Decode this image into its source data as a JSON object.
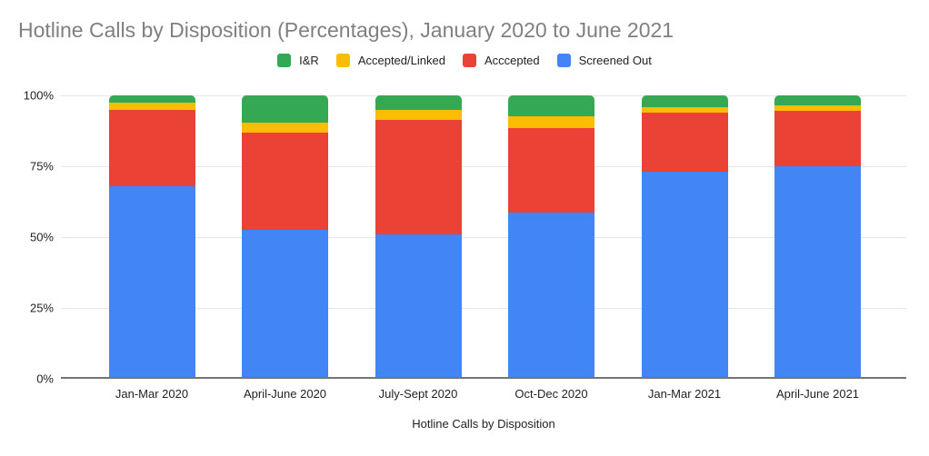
{
  "chart_data": {
    "type": "bar",
    "stacked": true,
    "unit": "percent",
    "title": "Hotline Calls by Disposition (Percentages), January 2020 to June 2021",
    "xlabel": "Hotline Calls by Disposition",
    "ylabel": "",
    "ylim": [
      0,
      100
    ],
    "y_ticks": [
      0,
      25,
      50,
      75,
      100
    ],
    "y_tick_suffix": "%",
    "grid": true,
    "legend_position": "top",
    "categories": [
      "Jan-Mar 2020",
      "April-June 2020",
      "July-Sept 2020",
      "Oct-Dec 2020",
      "Jan-Mar 2021",
      "April-June 2021"
    ],
    "series": [
      {
        "name": "Screened Out",
        "color": "#4285F4",
        "values": [
          68,
          52.5,
          51,
          58.5,
          73,
          75
        ]
      },
      {
        "name": "Acccepted",
        "color": "#EA4335",
        "values": [
          27,
          34.5,
          40.5,
          30,
          21,
          19.5
        ]
      },
      {
        "name": "Accepted/Linked",
        "color": "#FBBC04",
        "values": [
          2.5,
          3.5,
          3.5,
          4,
          2,
          2
        ]
      },
      {
        "name": "I&R",
        "color": "#34A853",
        "values": [
          2.5,
          9.5,
          5,
          7.5,
          4,
          3.5
        ]
      }
    ]
  },
  "legend": [
    {
      "label": "I&R",
      "color": "#34A853"
    },
    {
      "label": "Accepted/Linked",
      "color": "#FBBC04"
    },
    {
      "label": "Acccepted",
      "color": "#EA4335"
    },
    {
      "label": "Screened Out",
      "color": "#4285F4"
    }
  ],
  "colors": {
    "title_text": "#808080",
    "axis_text": "#222222",
    "gridline": "#e6e6e6",
    "baseline": "#757575",
    "background": "#ffffff"
  }
}
